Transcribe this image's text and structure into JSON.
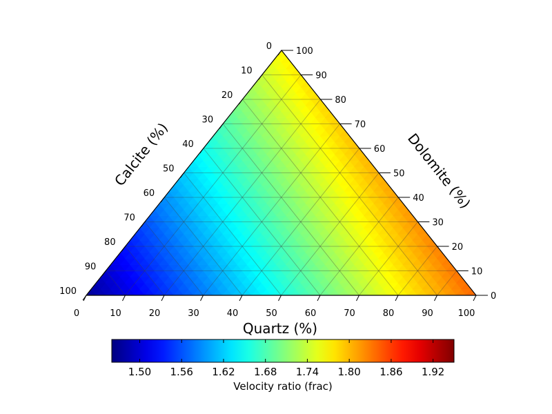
{
  "chart_data": {
    "type": "heatmap",
    "subtype": "ternary",
    "axes": {
      "bottom": {
        "label": "Quartz (%)",
        "ticks": [
          0,
          10,
          20,
          30,
          40,
          50,
          60,
          70,
          80,
          90,
          100
        ]
      },
      "left": {
        "label": "Calcite (%)",
        "ticks": [
          0,
          10,
          20,
          30,
          40,
          50,
          60,
          70,
          80,
          90,
          100
        ]
      },
      "right": {
        "label": "Dolomite (%)",
        "ticks": [
          0,
          10,
          20,
          30,
          40,
          50,
          60,
          70,
          80,
          90,
          100
        ]
      }
    },
    "grid": true,
    "grid_step": 10,
    "colormap": "jet",
    "colorbar": {
      "label": "Velocity ratio (frac)",
      "range": [
        1.46,
        1.95
      ],
      "ticks": [
        "1.50",
        "1.56",
        "1.62",
        "1.68",
        "1.74",
        "1.80",
        "1.86",
        "1.92"
      ],
      "placement": "bottom"
    },
    "endmember_values": {
      "Quartz": 1.84,
      "Calcite": 1.47,
      "Dolomite": 1.77
    }
  }
}
